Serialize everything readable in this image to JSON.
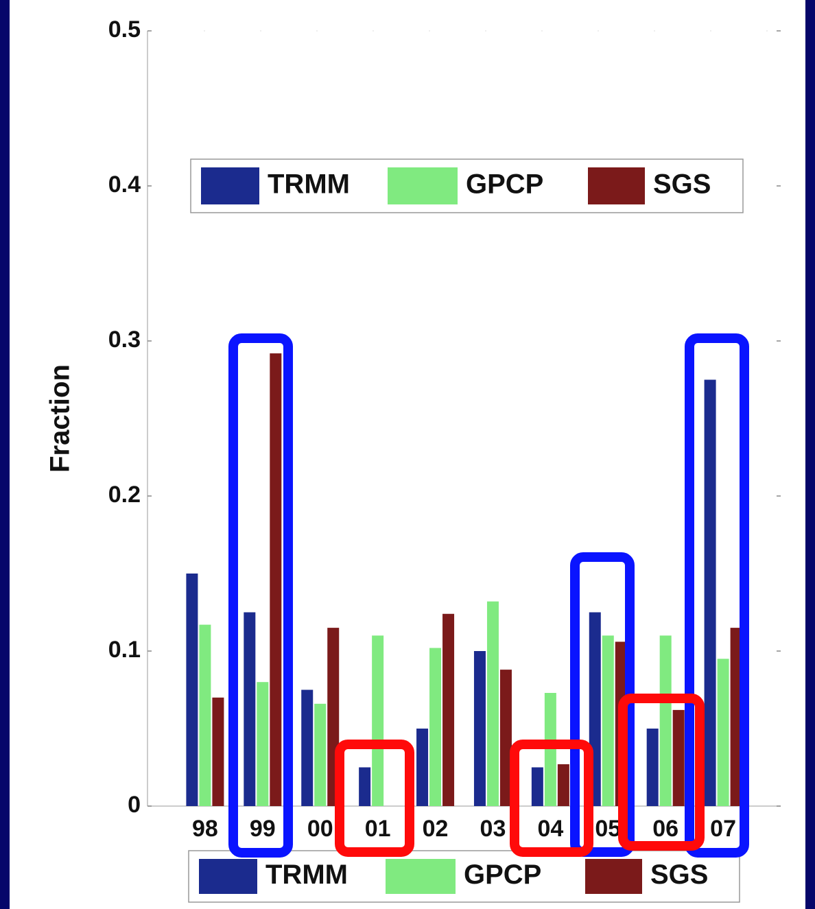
{
  "chart_data": {
    "type": "bar",
    "y_label": "Fraction",
    "categories": [
      "98",
      "99",
      "00",
      "01",
      "02",
      "03",
      "04",
      "05",
      "06",
      "07"
    ],
    "series": [
      {
        "name": "TRMM",
        "color": "#1b2b8e",
        "values": [
          0.15,
          0.125,
          0.075,
          0.025,
          0.05,
          0.1,
          0.025,
          0.125,
          0.05,
          0.275
        ]
      },
      {
        "name": "GPCP",
        "color": "#80ea80",
        "values": [
          0.117,
          0.08,
          0.066,
          0.11,
          0.102,
          0.132,
          0.073,
          0.11,
          0.11,
          0.095
        ]
      },
      {
        "name": "SGS",
        "color": "#7b1a1a",
        "values": [
          0.07,
          0.292,
          0.115,
          0,
          0.124,
          0.088,
          0.027,
          0.106,
          0.062,
          0.115
        ]
      }
    ],
    "ylim": [
      0,
      0.5
    ],
    "yticks": [
      0,
      0.1,
      0.2,
      0.3,
      0.4,
      0.5
    ]
  }
}
